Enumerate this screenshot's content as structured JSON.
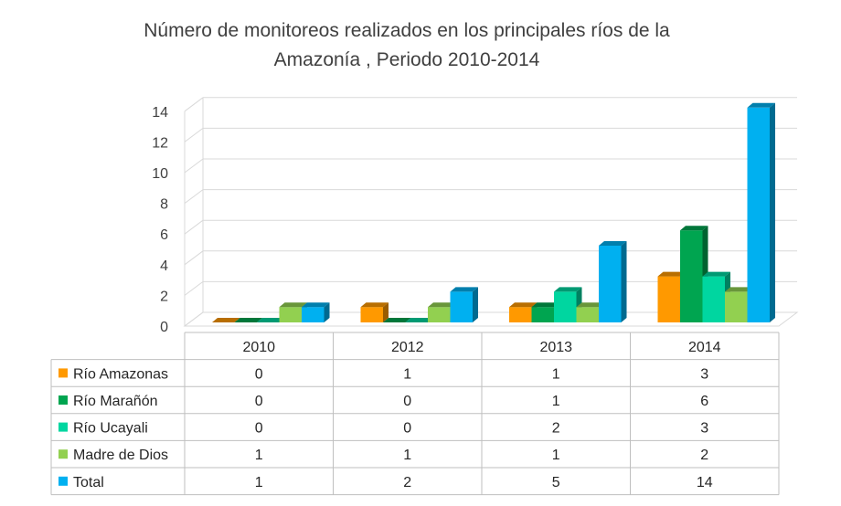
{
  "chart_data": {
    "type": "bar",
    "title_lines": [
      "Número de monitoreos realizados en los principales ríos de la",
      "Amazonía , Periodo 2010-2014"
    ],
    "categories": [
      "2010",
      "2012",
      "2013",
      "2014"
    ],
    "series": [
      {
        "name": "Río Amazonas",
        "color": "#FF9900",
        "values": [
          0,
          1,
          1,
          3
        ]
      },
      {
        "name": "Río Marañón",
        "color": "#00A550",
        "values": [
          0,
          0,
          1,
          6
        ]
      },
      {
        "name": "Río Ucayali",
        "color": "#00D6A0",
        "values": [
          0,
          0,
          2,
          3
        ]
      },
      {
        "name": "Madre de Dios",
        "color": "#92D050",
        "values": [
          1,
          1,
          1,
          2
        ]
      },
      {
        "name": "Total",
        "color": "#00B0F0",
        "values": [
          1,
          2,
          5,
          14
        ]
      }
    ],
    "yticks": [
      "0",
      "2",
      "4",
      "6",
      "8",
      "10",
      "12",
      "14"
    ],
    "ylim": [
      0,
      14
    ],
    "grid": true,
    "legend": "data table below chart",
    "style": "3d-clustered-column"
  }
}
